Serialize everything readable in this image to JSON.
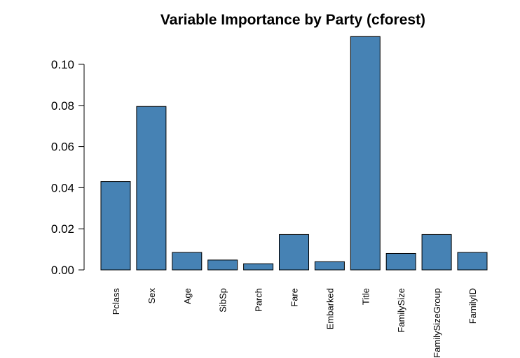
{
  "chart_data": {
    "type": "bar",
    "title": "Variable Importance by Party (cforest)",
    "xlabel": "",
    "ylabel": "",
    "categories": [
      "Pclass",
      "Sex",
      "Age",
      "SibSp",
      "Parch",
      "Fare",
      "Embarked",
      "Title",
      "FamilySize",
      "FamilySizeGroup",
      "FamilyID"
    ],
    "values": [
      0.043,
      0.0795,
      0.0085,
      0.0048,
      0.003,
      0.0172,
      0.004,
      0.1135,
      0.008,
      0.0172,
      0.0085
    ],
    "yticks": [
      "0.00",
      "0.02",
      "0.04",
      "0.06",
      "0.08",
      "0.10"
    ],
    "ylim": [
      0,
      0.115
    ],
    "bar_color": "#4682b4",
    "grid": false,
    "legend": "none"
  }
}
